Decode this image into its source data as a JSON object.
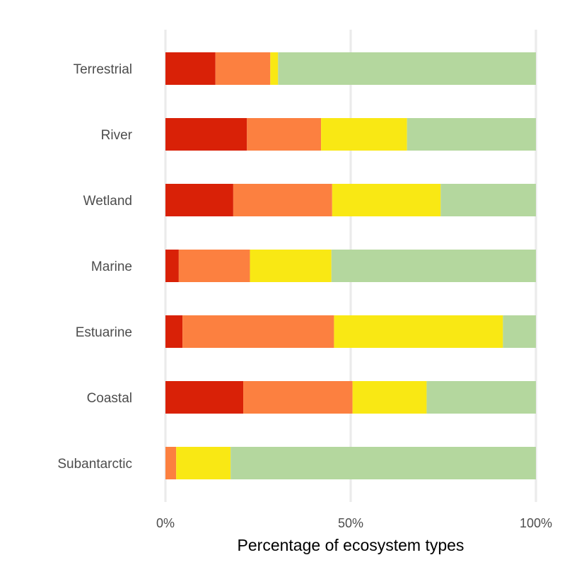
{
  "chart_data": {
    "type": "bar",
    "orientation": "horizontal",
    "stacked": true,
    "percent": true,
    "categories": [
      "Terrestrial",
      "River",
      "Wetland",
      "Marine",
      "Estuarine",
      "Coastal",
      "Subantarctic"
    ],
    "series": [
      {
        "color": "#d92107",
        "values": [
          13.5,
          22.0,
          18.3,
          3.6,
          4.6,
          21.0,
          0.0
        ]
      },
      {
        "color": "#fc8040",
        "values": [
          14.8,
          20.0,
          26.7,
          19.2,
          40.9,
          29.5,
          2.9
        ]
      },
      {
        "color": "#f9e814",
        "values": [
          2.1,
          23.2,
          29.3,
          22.0,
          45.6,
          20.0,
          14.7
        ]
      },
      {
        "color": "#b4d79e",
        "values": [
          69.6,
          34.8,
          25.7,
          55.2,
          8.9,
          29.5,
          82.4
        ]
      }
    ],
    "xlabel": "Percentage of ecosystem types",
    "xlim": [
      0,
      100
    ],
    "xticks": [
      {
        "value": 0,
        "label": "0%"
      },
      {
        "value": 50,
        "label": "50%"
      },
      {
        "value": 100,
        "label": "100%"
      }
    ],
    "grid": true,
    "legend": "none"
  }
}
